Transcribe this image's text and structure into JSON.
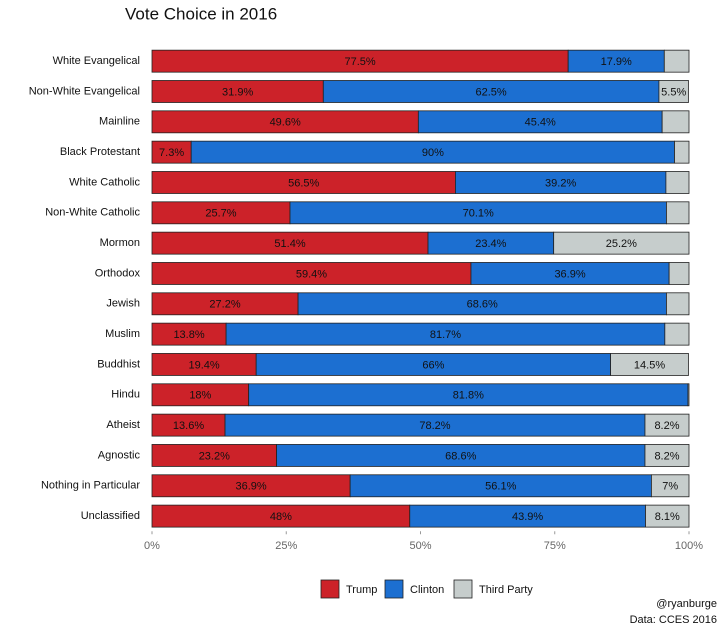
{
  "chart_data": {
    "type": "stacked_barh",
    "title": "Vote Choice in 2016",
    "categories": [
      "White Evangelical",
      "Non-White Evangelical",
      "Mainline",
      "Black Protestant",
      "White Catholic",
      "Non-White Catholic",
      "Mormon",
      "Orthodox",
      "Jewish",
      "Muslim",
      "Buddhist",
      "Hindu",
      "Atheist",
      "Agnostic",
      "Nothing in Particular",
      "Unclassified"
    ],
    "series": [
      {
        "name": "Trump",
        "color": "#cc2229",
        "values": [
          77.5,
          31.9,
          49.6,
          7.3,
          56.5,
          25.7,
          51.4,
          59.4,
          27.2,
          13.8,
          19.4,
          18,
          13.6,
          23.2,
          36.9,
          48
        ],
        "value_labels": [
          "77.5%",
          "31.9%",
          "49.6%",
          "7.3%",
          "56.5%",
          "25.7%",
          "51.4%",
          "59.4%",
          "27.2%",
          "13.8%",
          "19.4%",
          "18%",
          "13.6%",
          "23.2%",
          "36.9%",
          "48%"
        ]
      },
      {
        "name": "Clinton",
        "color": "#1c6fd1",
        "values": [
          17.9,
          62.5,
          45.4,
          90,
          39.2,
          70.1,
          23.4,
          36.9,
          68.6,
          81.7,
          66,
          81.8,
          78.2,
          68.6,
          56.1,
          43.9
        ],
        "value_labels": [
          "17.9%",
          "62.5%",
          "45.4%",
          "90%",
          "39.2%",
          "70.1%",
          "23.4%",
          "36.9%",
          "68.6%",
          "81.7%",
          "66%",
          "81.8%",
          "78.2%",
          "68.6%",
          "56.1%",
          "43.9%"
        ]
      },
      {
        "name": "Third Party",
        "color": "#c6cdcc",
        "values": [
          4.6,
          5.5,
          5,
          2.7,
          4.3,
          4.2,
          25.2,
          3.7,
          4.2,
          4.5,
          14.5,
          0.2,
          8.2,
          8.2,
          7,
          8.1
        ],
        "value_labels": [
          null,
          "5.5%",
          null,
          null,
          null,
          null,
          "25.2%",
          null,
          null,
          null,
          "14.5%",
          null,
          "8.2%",
          "8.2%",
          "7%",
          "8.1%"
        ]
      }
    ],
    "xlim": [
      0,
      100
    ],
    "xticks": [
      {
        "value": 0,
        "label": "0%"
      },
      {
        "value": 25,
        "label": "25%"
      },
      {
        "value": 50,
        "label": "50%"
      },
      {
        "value": 75,
        "label": "75%"
      },
      {
        "value": 100,
        "label": "100%"
      }
    ],
    "legend": "bottom",
    "caption": [
      "@ryanburge",
      "Data: CCES 2016"
    ]
  }
}
